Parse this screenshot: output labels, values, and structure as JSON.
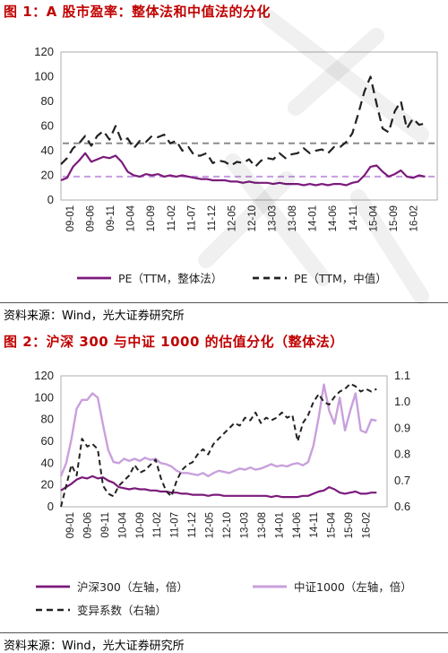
{
  "figure1": {
    "title": "图 1：A 股市盈率：整体法和中值法的分化",
    "source": "资料来源：Wind，光大证券研究所"
  },
  "figure2": {
    "title": "图 2：沪深 300 与中证 1000 的估值分化（整体法）",
    "source": "资料来源：Wind，光大证券研究所"
  },
  "colors": {
    "title": "#c00000",
    "dark_purple": "#7b1a7b",
    "light_purple": "#c9a0dc",
    "dashed_black": "#222222",
    "grey_ref": "#8c8c8c",
    "purple_ref": "#c79be0"
  },
  "chart_data": [
    {
      "type": "line",
      "title": "A 股市盈率：整体法和中值法的分化",
      "ylim": [
        0,
        120
      ],
      "yticks": [
        0,
        20,
        40,
        60,
        80,
        100,
        120
      ],
      "xlim": [
        0,
        31
      ],
      "x_tick_labels": [
        "09-01",
        "09-06",
        "09-11",
        "10-04",
        "10-09",
        "11-02",
        "11-07",
        "11-12",
        "12-05",
        "12-10",
        "13-03",
        "13-08",
        "14-01",
        "14-06",
        "14-11",
        "15-04",
        "15-09",
        "16-02"
      ],
      "reference_lines": [
        {
          "value": 46,
          "style": "dashed",
          "color": "grey"
        },
        {
          "value": 19,
          "style": "dashed",
          "color": "purple"
        }
      ],
      "legend_position": "bottom",
      "series": [
        {
          "name": "PE（TTM，整体法）",
          "style": "solid",
          "x": [
            0,
            0.5,
            1,
            1.5,
            2,
            2.5,
            3,
            3.5,
            4,
            4.5,
            5,
            5.5,
            6,
            6.5,
            7,
            7.5,
            8,
            8.5,
            9,
            9.5,
            10,
            10.5,
            11,
            11.5,
            12,
            12.5,
            13,
            13.5,
            14,
            14.5,
            15,
            15.5,
            16,
            16.5,
            17,
            17.5,
            18,
            18.5,
            19,
            19.5,
            20,
            20.5,
            21,
            21.5,
            22,
            22.5,
            23,
            23.5,
            24,
            24.5,
            25,
            25.5,
            26,
            26.5,
            27,
            27.5,
            28,
            28.5,
            29,
            29.5,
            30
          ],
          "values": [
            16,
            18,
            27,
            32,
            38,
            31,
            33,
            35,
            34,
            36,
            31,
            23,
            20,
            19,
            21,
            20,
            21,
            19,
            20,
            19,
            20,
            19,
            18,
            17,
            17,
            16,
            16,
            16,
            15,
            15,
            14,
            15,
            14,
            14,
            14,
            13,
            14,
            13,
            13,
            13,
            12,
            13,
            12,
            13,
            12,
            13,
            13,
            12,
            14,
            15,
            20,
            27,
            28,
            23,
            19,
            21,
            24,
            19,
            18,
            20,
            19
          ]
        },
        {
          "name": "PE（TTM，中值）",
          "style": "dashed",
          "x": [
            0,
            0.5,
            1,
            1.5,
            2,
            2.5,
            3,
            3.5,
            4,
            4.5,
            5,
            5.5,
            6,
            6.5,
            7,
            7.5,
            8,
            8.5,
            9,
            9.5,
            10,
            10.5,
            11,
            11.5,
            12,
            12.5,
            13,
            13.5,
            14,
            14.5,
            15,
            15.5,
            16,
            16.5,
            17,
            17.5,
            18,
            18.5,
            19,
            19.5,
            20,
            20.5,
            21,
            21.5,
            22,
            22.5,
            23,
            23.5,
            24,
            24.5,
            25,
            25.5,
            26,
            26.5,
            27,
            27.5,
            28,
            28.5,
            29,
            29.5,
            30
          ],
          "values": [
            29,
            34,
            42,
            46,
            52,
            44,
            52,
            56,
            49,
            60,
            48,
            50,
            42,
            48,
            47,
            52,
            51,
            53,
            46,
            48,
            40,
            43,
            36,
            36,
            38,
            30,
            32,
            31,
            28,
            31,
            30,
            33,
            27,
            32,
            34,
            33,
            38,
            34,
            37,
            38,
            42,
            38,
            40,
            41,
            38,
            43,
            43,
            47,
            54,
            70,
            88,
            100,
            78,
            58,
            55,
            72,
            80,
            58,
            66,
            61,
            62
          ]
        }
      ]
    },
    {
      "type": "line",
      "title": "沪深 300 与中证 1000 的估值分化（整体法）",
      "ylim": [
        0,
        120
      ],
      "yticks": [
        0,
        20,
        40,
        60,
        80,
        100,
        120
      ],
      "y2lim": [
        0.6,
        1.1
      ],
      "y2ticks": [
        0.6,
        0.7,
        0.8,
        0.9,
        1.0,
        1.1
      ],
      "xlim": [
        0,
        31
      ],
      "x_tick_labels": [
        "09-01",
        "09-06",
        "09-11",
        "10-04",
        "10-09",
        "11-02",
        "11-07",
        "11-12",
        "12-05",
        "12-10",
        "13-03",
        "13-08",
        "14-01",
        "14-06",
        "14-11",
        "15-04",
        "15-09",
        "16-02"
      ],
      "legend_position": "bottom",
      "series": [
        {
          "name": "沪深300（左轴，倍）",
          "axis": "left",
          "style": "solid",
          "x": [
            0,
            0.5,
            1,
            1.5,
            2,
            2.5,
            3,
            3.5,
            4,
            4.5,
            5,
            5.5,
            6,
            6.5,
            7,
            7.5,
            8,
            8.5,
            9,
            9.5,
            10,
            10.5,
            11,
            11.5,
            12,
            12.5,
            13,
            13.5,
            14,
            14.5,
            15,
            15.5,
            16,
            16.5,
            17,
            17.5,
            18,
            18.5,
            19,
            19.5,
            20,
            20.5,
            21,
            21.5,
            22,
            22.5,
            23,
            23.5,
            24,
            24.5,
            25,
            25.5,
            26,
            26.5,
            27,
            27.5,
            28,
            28.5,
            29,
            29.5,
            30
          ],
          "values": [
            15,
            18,
            21,
            25,
            27,
            26,
            28,
            26,
            27,
            24,
            22,
            18,
            17,
            16,
            17,
            16,
            16,
            15,
            15,
            14,
            14,
            13,
            13,
            12,
            12,
            11,
            11,
            11,
            10,
            11,
            11,
            10,
            10,
            10,
            10,
            10,
            10,
            10,
            10,
            10,
            9,
            10,
            9,
            9,
            9,
            9,
            10,
            10,
            12,
            14,
            15,
            18,
            16,
            13,
            12,
            13,
            14,
            12,
            12,
            13,
            13
          ]
        },
        {
          "name": "中证1000（左轴，倍）",
          "axis": "left",
          "style": "solid",
          "x": [
            0,
            0.5,
            1,
            1.5,
            2,
            2.5,
            3,
            3.5,
            4,
            4.5,
            5,
            5.5,
            6,
            6.5,
            7,
            7.5,
            8,
            8.5,
            9,
            9.5,
            10,
            10.5,
            11,
            11.5,
            12,
            12.5,
            13,
            13.5,
            14,
            14.5,
            15,
            15.5,
            16,
            16.5,
            17,
            17.5,
            18,
            18.5,
            19,
            19.5,
            20,
            20.5,
            21,
            21.5,
            22,
            22.5,
            23,
            23.5,
            24,
            24.5,
            25,
            25.5,
            26,
            26.5,
            27,
            27.5,
            28,
            28.5,
            29,
            29.5,
            30
          ],
          "values": [
            28,
            40,
            62,
            90,
            98,
            98,
            104,
            100,
            75,
            52,
            41,
            40,
            44,
            42,
            44,
            42,
            45,
            43,
            44,
            40,
            39,
            37,
            33,
            31,
            31,
            30,
            29,
            31,
            28,
            31,
            33,
            32,
            31,
            33,
            35,
            34,
            36,
            34,
            35,
            37,
            39,
            37,
            38,
            37,
            39,
            40,
            38,
            41,
            56,
            82,
            112,
            88,
            76,
            100,
            70,
            88,
            104,
            70,
            68,
            80,
            79
          ]
        },
        {
          "name": "变异系数（右轴）",
          "axis": "right",
          "style": "dashed",
          "x": [
            0,
            0.5,
            1,
            1.5,
            2,
            2.5,
            3,
            3.5,
            4,
            4.5,
            5,
            5.5,
            6,
            6.5,
            7,
            7.5,
            8,
            8.5,
            9,
            9.5,
            10,
            10.5,
            11,
            11.5,
            12,
            12.5,
            13,
            13.5,
            14,
            14.5,
            15,
            15.5,
            16,
            16.5,
            17,
            17.5,
            18,
            18.5,
            19,
            19.5,
            20,
            20.5,
            21,
            21.5,
            22,
            22.5,
            23,
            23.5,
            24,
            24.5,
            25,
            25.5,
            26,
            26.5,
            27,
            27.5,
            28,
            28.5,
            29,
            29.5,
            30
          ],
          "values": [
            0.6,
            0.68,
            0.76,
            0.72,
            0.86,
            0.83,
            0.84,
            0.82,
            0.68,
            0.65,
            0.64,
            0.68,
            0.7,
            0.72,
            0.76,
            0.73,
            0.74,
            0.76,
            0.78,
            0.71,
            0.66,
            0.64,
            0.7,
            0.74,
            0.76,
            0.77,
            0.8,
            0.82,
            0.8,
            0.84,
            0.86,
            0.88,
            0.9,
            0.92,
            0.91,
            0.94,
            0.93,
            0.96,
            0.92,
            0.94,
            0.93,
            0.94,
            0.96,
            0.94,
            0.95,
            0.85,
            0.92,
            0.95,
            1.0,
            1.03,
            1.0,
            0.99,
            1.02,
            1.04,
            1.05,
            1.07,
            1.06,
            1.04,
            1.05,
            1.04,
            1.05
          ]
        }
      ]
    }
  ]
}
